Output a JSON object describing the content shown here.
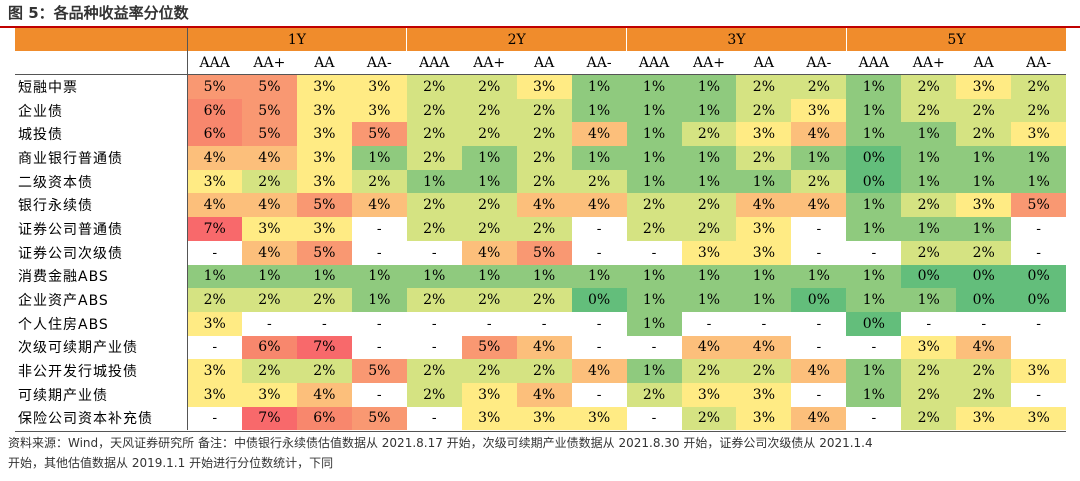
{
  "title": "图 5：各品种收益率分位数",
  "colors": {
    "header": "#f08c2c",
    "v0": "#63be7b",
    "v1": "#8fca7e",
    "v2": "#d5e382",
    "v3": "#ffeb84",
    "v4": "#fcbf7b",
    "v5": "#f99872",
    "v6": "#f8876d",
    "v7": "#f8696b"
  },
  "chart_data": {
    "type": "heatmap",
    "title": "图 5：各品种收益率分位数",
    "periods": [
      "1Y",
      "2Y",
      "3Y",
      "5Y"
    ],
    "ratings": [
      "AAA",
      "AA+",
      "AA",
      "AA-"
    ],
    "rows": [
      {
        "label": "短融中票",
        "values": [
          "5%",
          "5%",
          "3%",
          "3%",
          "2%",
          "2%",
          "3%",
          "1%",
          "1%",
          "1%",
          "2%",
          "2%",
          "1%",
          "2%",
          "3%",
          "2%"
        ]
      },
      {
        "label": "企业债",
        "values": [
          "6%",
          "5%",
          "3%",
          "3%",
          "2%",
          "2%",
          "2%",
          "1%",
          "1%",
          "1%",
          "2%",
          "3%",
          "1%",
          "2%",
          "2%",
          "2%"
        ]
      },
      {
        "label": "城投债",
        "values": [
          "6%",
          "5%",
          "3%",
          "5%",
          "2%",
          "2%",
          "2%",
          "4%",
          "1%",
          "2%",
          "3%",
          "4%",
          "1%",
          "1%",
          "2%",
          "3%"
        ]
      },
      {
        "label": "商业银行普通债",
        "values": [
          "4%",
          "4%",
          "3%",
          "1%",
          "2%",
          "1%",
          "2%",
          "1%",
          "1%",
          "1%",
          "2%",
          "1%",
          "0%",
          "1%",
          "1%",
          "1%"
        ]
      },
      {
        "label": "二级资本债",
        "values": [
          "3%",
          "2%",
          "3%",
          "2%",
          "1%",
          "1%",
          "2%",
          "2%",
          "1%",
          "1%",
          "1%",
          "2%",
          "0%",
          "1%",
          "1%",
          "1%"
        ]
      },
      {
        "label": "银行永续债",
        "values": [
          "4%",
          "4%",
          "5%",
          "4%",
          "2%",
          "2%",
          "4%",
          "4%",
          "2%",
          "2%",
          "4%",
          "4%",
          "1%",
          "2%",
          "3%",
          "5%"
        ]
      },
      {
        "label": "证券公司普通债",
        "values": [
          "7%",
          "3%",
          "3%",
          "-",
          "2%",
          "2%",
          "2%",
          "-",
          "2%",
          "2%",
          "3%",
          "-",
          "1%",
          "1%",
          "1%",
          "-"
        ]
      },
      {
        "label": "证券公司次级债",
        "values": [
          "-",
          "4%",
          "5%",
          "-",
          "-",
          "4%",
          "5%",
          "-",
          "-",
          "3%",
          "3%",
          "-",
          "-",
          "2%",
          "2%",
          "-"
        ]
      },
      {
        "label": "消费金融ABS",
        "values": [
          "1%",
          "1%",
          "1%",
          "1%",
          "1%",
          "1%",
          "1%",
          "1%",
          "1%",
          "1%",
          "1%",
          "1%",
          "1%",
          "0%",
          "0%",
          "0%"
        ]
      },
      {
        "label": "企业资产ABS",
        "values": [
          "2%",
          "2%",
          "2%",
          "1%",
          "2%",
          "2%",
          "2%",
          "0%",
          "1%",
          "1%",
          "1%",
          "0%",
          "1%",
          "1%",
          "0%",
          "0%"
        ]
      },
      {
        "label": "个人住房ABS",
        "values": [
          "3%",
          "-",
          "-",
          "-",
          "-",
          "-",
          "-",
          "-",
          "1%",
          "-",
          "-",
          "-",
          "0%",
          "-",
          "-",
          "-"
        ]
      },
      {
        "label": "次级可续期产业债",
        "values": [
          "-",
          "6%",
          "7%",
          "-",
          "-",
          "5%",
          "4%",
          "-",
          "-",
          "4%",
          "4%",
          "-",
          "-",
          "3%",
          "4%",
          ""
        ]
      },
      {
        "label": "非公开发行城投债",
        "values": [
          "3%",
          "2%",
          "2%",
          "5%",
          "2%",
          "2%",
          "2%",
          "4%",
          "1%",
          "2%",
          "2%",
          "4%",
          "1%",
          "2%",
          "2%",
          "3%"
        ]
      },
      {
        "label": "可续期产业债",
        "values": [
          "3%",
          "3%",
          "4%",
          "-",
          "2%",
          "3%",
          "4%",
          "-",
          "2%",
          "3%",
          "3%",
          "-",
          "1%",
          "2%",
          "2%",
          "-"
        ]
      },
      {
        "label": "保险公司资本补充债",
        "values": [
          "-",
          "7%",
          "6%",
          "5%",
          "-",
          "3%",
          "3%",
          "3%",
          "-",
          "2%",
          "3%",
          "4%",
          "-",
          "2%",
          "3%",
          "3%"
        ]
      }
    ]
  },
  "note_line1": "资料来源：Wind，天风证券研究所  备注：中债银行永续债估值数据从 2021.8.17 开始，次级可续期产业债数据从 2021.8.30 开始，证券公司次级债从 2021.1.4",
  "note_line2": "开始，其他估值数据从 2019.1.1 开始进行分位数统计，下同"
}
